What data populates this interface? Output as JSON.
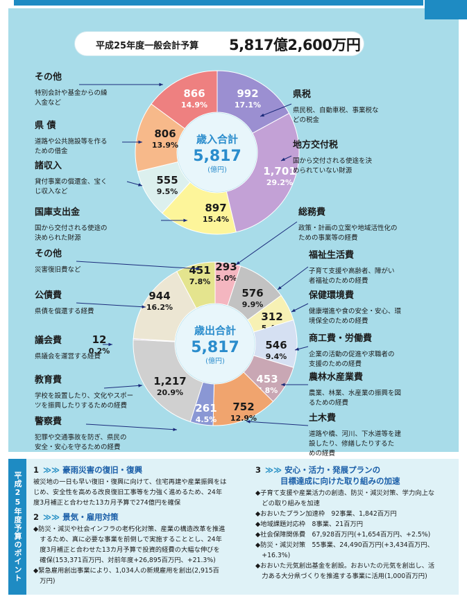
{
  "title": {
    "label": "平成25年度一般会計予算",
    "amount": "5,817億2,600万円"
  },
  "chart_data": [
    {
      "type": "pie",
      "center": {
        "title": "歳入合計",
        "value": "5,817",
        "unit": "(億円)"
      },
      "slices": [
        {
          "name": "県税",
          "value": 992,
          "pct": "17.1%",
          "color": "#9b8fd1",
          "desc": [
            "県民税、自動車税、事業税な",
            "どの税金"
          ]
        },
        {
          "name": "地方交付税",
          "value": 1701,
          "pct": "29.2%",
          "color": "#c3a1d6",
          "desc": [
            "国から交付される使途を決",
            "められていない財源"
          ]
        },
        {
          "name": "国庫支出金",
          "value": 897,
          "pct": "15.4%",
          "color": "#fdf59a",
          "desc": [
            "国から交付される使途の",
            "決められた財源"
          ]
        },
        {
          "name": "諸収入",
          "value": 555,
          "pct": "9.5%",
          "color": "#dcf0ee",
          "desc": [
            "貸付事業の償還金、宝く",
            "じ収入など"
          ]
        },
        {
          "name": "県 債",
          "value": 806,
          "pct": "13.9%",
          "color": "#f7b98a",
          "desc": [
            "道路や公共施設等を作る",
            "ための借金"
          ]
        },
        {
          "name": "その他",
          "value": 866,
          "pct": "14.9%",
          "color": "#ee8080",
          "desc": [
            "特別会計や基金からの繰",
            "入金など"
          ]
        }
      ]
    },
    {
      "type": "pie",
      "center": {
        "title": "歳出合計",
        "value": "5,817",
        "unit": "(億円)"
      },
      "slices": [
        {
          "name": "総務費",
          "value": 293,
          "pct": "5.0%",
          "color": "#f4b6c0",
          "desc": [
            "政策・計画の立案や地域活性化の",
            "ための事業等の経費"
          ]
        },
        {
          "name": "福祉生活費",
          "value": 576,
          "pct": "9.9%",
          "color": "#c2c2c2",
          "desc": [
            "子育て支援や高齢者、障がい",
            "者福祉のための経費"
          ]
        },
        {
          "name": "保健環境費",
          "value": 312,
          "pct": "5.4%",
          "color": "#f7f1b4",
          "desc": [
            "健康増進や食の安全・安心、環",
            "境保全のための経費"
          ]
        },
        {
          "name": "商工費・労働費",
          "value": 546,
          "pct": "9.4%",
          "color": "#d5e0f2",
          "desc": [
            "企業の活動の促進や求職者の",
            "支援のための経費"
          ]
        },
        {
          "name": "農林水産業費",
          "value": 453,
          "pct": "7.8%",
          "color": "#c9a7b4",
          "desc": [
            "農業、林業、水産業の振興を図",
            "るための経費"
          ]
        },
        {
          "name": "土木費",
          "value": 752,
          "pct": "12.9%",
          "color": "#f0a46e",
          "desc": [
            "道路や橋、河川、下水道等を建",
            "設したり、修繕したりするた",
            "めの経費"
          ]
        },
        {
          "name": "警察費",
          "value": 261,
          "pct": "4.5%",
          "color": "#8a97d4",
          "desc": [
            "犯罪や交通事故を防ぎ、県民の",
            "安全・安心を守るための経費"
          ]
        },
        {
          "name": "教育費",
          "value": 1217,
          "pct": "20.9%",
          "color": "#d0d0d0",
          "desc": [
            "学校を設置したり、文化やスポー",
            "ツを振興したりするための経費"
          ]
        },
        {
          "name": "議会費",
          "value": 12,
          "pct": "0.2%",
          "color": "#b9a0c9",
          "desc": [
            "県議会を運営する経費"
          ]
        },
        {
          "name": "公債費",
          "value": 944,
          "pct": "16.2%",
          "color": "#ece6d3",
          "desc": [
            "県債を償還する経費"
          ]
        },
        {
          "name": "その他",
          "value": 451,
          "pct": "7.8%",
          "color": "#e4e48e",
          "desc": [
            "災害復旧費など"
          ]
        }
      ]
    }
  ],
  "bottom": {
    "side_label": "平成25年度予算のポイント",
    "sections": [
      {
        "num": "1",
        "arrow": "≫≫",
        "title": "豪雨災害の復旧・復興",
        "lines": [
          "被災地の一日も早い復旧・復興に向けて、住宅再建や産業振興をは",
          "じめ、安全性を高める改良復旧工事等を力強く進めるため、24年",
          "度3月補正と合わせた13カ月予算で274億円を確保"
        ]
      },
      {
        "num": "2",
        "arrow": "≫≫",
        "title": "景気・雇用対策",
        "lines": [
          "◆防災・減災や社会インフラの老朽化対策、産業の構造改革を推進",
          "　するため、真に必要な事業を前倒しで実施することとし、24年",
          "　度3月補正と合わせた13カ月予算で投資的経費の大幅な伸びを",
          "　確保(153,371百万円、対前年度+26,895百万円、+21.3%)",
          "◆緊急雇用創出事業により、1,034人の新規雇用を創出(2,915百",
          "　万円)"
        ]
      },
      {
        "num": "3",
        "arrow": "≫≫",
        "title": "安心・活力・発展プランの",
        "title2": "目標達成に向けた取り組みの加速",
        "lines": [
          "◆子育て支援や産業活力の創造、防災・減災対策、学力向上な",
          "　どの取り組みを加速",
          "◆おおいたプラン加速枠　92事業、1,842百万円",
          "◆地域課題対応枠　8事業、21百万円",
          "◆社会保障関係費　67,928百万円(+1,654百万円、+2.5%)",
          "◆防災・減災対策　55事業、24,490百万円(+3,434百万円、",
          "　+16.3%)",
          "◆おおいた元気創出基金を創設。おおいたの元気を創出し、活",
          "　力ある大分県づくりを推進する事業に活用(1,000百万円)"
        ]
      }
    ]
  }
}
